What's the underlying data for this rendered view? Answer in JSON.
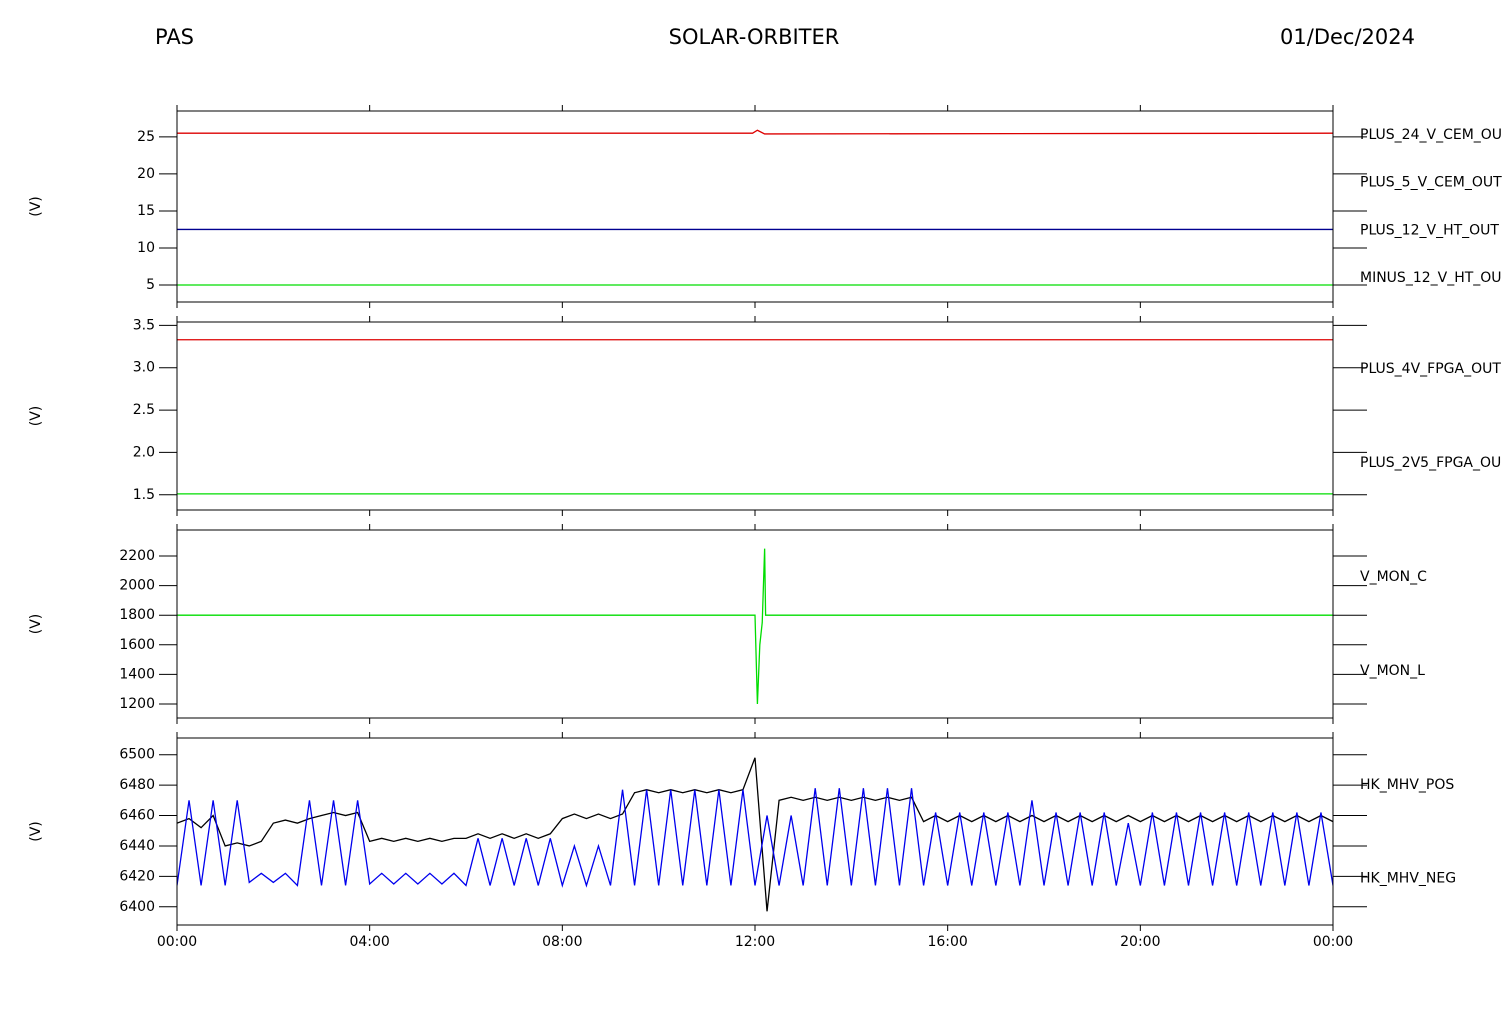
{
  "header": {
    "left": "PAS",
    "center": "SOLAR-ORBITER",
    "right": "01/Dec/2024"
  },
  "chart_data": [
    {
      "type": "line",
      "ylabel": "(V)",
      "xlim": [
        0,
        24
      ],
      "xticks": [
        0,
        4,
        8,
        12,
        16,
        20,
        24
      ],
      "ylim": [
        2.7,
        28.5
      ],
      "yticks": [
        5,
        10,
        15,
        20,
        25
      ],
      "series": [
        {
          "name": "PLUS_24_V_CEM_OU",
          "color": "#dd0000",
          "x": [
            0,
            11.95,
            12.05,
            12.2,
            24
          ],
          "values": [
            25.5,
            25.5,
            25.9,
            25.4,
            25.5
          ]
        },
        {
          "name": "PLUS_5_V_CEM_OUT",
          "color": "#00dd00",
          "x": [
            0,
            24
          ],
          "values": [
            5.0,
            5.0
          ]
        },
        {
          "name": "PLUS_12_V_HT_OUT",
          "color": "#000090",
          "x": [
            0,
            24
          ],
          "values": [
            12.5,
            12.5
          ]
        },
        {
          "name": "MINUS_12_V_HT_OU",
          "color": "#000000",
          "x": [
            0,
            24
          ],
          "values": [
            null,
            null
          ]
        }
      ]
    },
    {
      "type": "line",
      "ylabel": "(V)",
      "xlim": [
        0,
        24
      ],
      "xticks": [
        0,
        4,
        8,
        12,
        16,
        20,
        24
      ],
      "ylim": [
        1.32,
        3.54
      ],
      "yticks": [
        {
          "value": 1.5,
          "label": "1.5"
        },
        {
          "value": 2,
          "label": "2.0"
        },
        2.5,
        {
          "value": 3,
          "label": "3.0"
        },
        3.5
      ],
      "series": [
        {
          "name": "PLUS_4V_FPGA_OUT",
          "color": "#dd0000",
          "x": [
            0,
            24
          ],
          "values": [
            3.33,
            3.33
          ]
        },
        {
          "name": "PLUS_2V5_FPGA_OU",
          "color": "#00dd00",
          "x": [
            0,
            24
          ],
          "values": [
            1.51,
            1.51
          ]
        }
      ]
    },
    {
      "type": "line",
      "ylabel": "(V)",
      "xlim": [
        0,
        24
      ],
      "xticks": [
        0,
        4,
        8,
        12,
        16,
        20,
        24
      ],
      "ylim": [
        1105,
        2376
      ],
      "yticks": [
        1200,
        1400,
        1600,
        1800,
        2000,
        2200
      ],
      "series": [
        {
          "name": "V_MON_C",
          "color": "#dd0000",
          "x": [
            0,
            24
          ],
          "values": [
            null,
            null
          ]
        },
        {
          "name": "V_MON_L",
          "color": "#00dd00",
          "x": [
            0,
            12.0,
            12.05,
            12.1,
            12.15,
            12.2,
            12.22,
            24
          ],
          "values": [
            1800,
            1800,
            1200,
            1600,
            1750,
            2250,
            1800,
            1800
          ]
        }
      ]
    },
    {
      "type": "line",
      "ylabel": "(V)",
      "xlim": [
        0,
        24
      ],
      "xticks": [
        {
          "value": 0,
          "label": "00:00"
        },
        {
          "value": 4,
          "label": "04:00"
        },
        {
          "value": 8,
          "label": "08:00"
        },
        {
          "value": 12,
          "label": "12:00"
        },
        {
          "value": 16,
          "label": "16:00"
        },
        {
          "value": 20,
          "label": "20:00"
        },
        {
          "value": 24,
          "label": "00:00"
        }
      ],
      "ylim": [
        6388,
        6511
      ],
      "yticks": [
        6400,
        6420,
        6440,
        6460,
        6480,
        6500
      ],
      "series": [
        {
          "name": "HK_MHV_POS",
          "color": "#000000",
          "x": [
            0,
            0.25,
            0.5,
            0.75,
            1,
            1.25,
            1.5,
            1.75,
            2,
            2.25,
            2.5,
            2.75,
            3,
            3.25,
            3.5,
            3.75,
            4,
            4.25,
            4.5,
            4.75,
            5,
            5.25,
            5.5,
            5.75,
            6,
            6.25,
            6.5,
            6.75,
            7,
            7.25,
            7.5,
            7.75,
            8,
            8.25,
            8.5,
            8.75,
            9,
            9.25,
            9.5,
            9.75,
            10,
            10.25,
            10.5,
            10.75,
            11,
            11.25,
            11.5,
            11.75,
            12,
            12.25,
            12.5,
            12.75,
            13,
            13.25,
            13.5,
            13.75,
            14,
            14.25,
            14.5,
            14.75,
            15,
            15.25,
            15.5,
            15.75,
            16,
            16.25,
            16.5,
            16.75,
            17,
            17.25,
            17.5,
            17.75,
            18,
            18.25,
            18.5,
            18.75,
            19,
            19.25,
            19.5,
            19.75,
            20,
            20.25,
            20.5,
            20.75,
            21,
            21.25,
            21.5,
            21.75,
            22,
            22.25,
            22.5,
            22.75,
            23,
            23.25,
            23.5,
            23.75,
            24
          ],
          "values": [
            6455,
            6458,
            6452,
            6460,
            6440,
            6442,
            6440,
            6443,
            6455,
            6457,
            6455,
            6458,
            6460,
            6462,
            6460,
            6462,
            6443,
            6445,
            6443,
            6445,
            6443,
            6445,
            6443,
            6445,
            6445,
            6448,
            6445,
            6448,
            6445,
            6448,
            6445,
            6448,
            6458,
            6461,
            6458,
            6461,
            6458,
            6461,
            6475,
            6477,
            6475,
            6477,
            6475,
            6477,
            6475,
            6477,
            6475,
            6477,
            6498,
            6397,
            6470,
            6472,
            6470,
            6472,
            6470,
            6472,
            6470,
            6472,
            6470,
            6472,
            6470,
            6472,
            6456,
            6460,
            6456,
            6460,
            6456,
            6460,
            6456,
            6460,
            6456,
            6460,
            6456,
            6460,
            6456,
            6460,
            6456,
            6460,
            6456,
            6460,
            6456,
            6460,
            6456,
            6460,
            6456,
            6460,
            6456,
            6460,
            6456,
            6460,
            6456,
            6460,
            6456,
            6460,
            6456,
            6460,
            6456
          ]
        },
        {
          "name": "HK_MHV_NEG",
          "color": "#0000ee",
          "x": [
            0,
            0.25,
            0.5,
            0.75,
            1,
            1.25,
            1.5,
            1.75,
            2,
            2.25,
            2.5,
            2.75,
            3,
            3.25,
            3.5,
            3.75,
            4,
            4.25,
            4.5,
            4.75,
            5,
            5.25,
            5.5,
            5.75,
            6,
            6.25,
            6.5,
            6.75,
            7,
            7.25,
            7.5,
            7.75,
            8,
            8.25,
            8.5,
            8.75,
            9,
            9.25,
            9.5,
            9.75,
            10,
            10.25,
            10.5,
            10.75,
            11,
            11.25,
            11.5,
            11.75,
            12,
            12.25,
            12.5,
            12.75,
            13,
            13.25,
            13.5,
            13.75,
            14,
            14.25,
            14.5,
            14.75,
            15,
            15.25,
            15.5,
            15.75,
            16,
            16.25,
            16.5,
            16.75,
            17,
            17.25,
            17.5,
            17.75,
            18,
            18.25,
            18.5,
            18.75,
            19,
            19.25,
            19.5,
            19.75,
            20,
            20.25,
            20.5,
            20.75,
            21,
            21.25,
            21.5,
            21.75,
            22,
            22.25,
            22.5,
            22.75,
            23,
            23.25,
            23.5,
            23.75,
            24
          ],
          "values": [
            6414,
            6470,
            6414,
            6470,
            6414,
            6470,
            6416,
            6422,
            6416,
            6422,
            6414,
            6470,
            6414,
            6470,
            6414,
            6470,
            6415,
            6422,
            6415,
            6422,
            6415,
            6422,
            6415,
            6422,
            6414,
            6445,
            6414,
            6445,
            6414,
            6445,
            6414,
            6445,
            6414,
            6440,
            6414,
            6440,
            6414,
            6477,
            6414,
            6477,
            6414,
            6477,
            6414,
            6477,
            6414,
            6477,
            6414,
            6477,
            6414,
            6460,
            6414,
            6460,
            6414,
            6478,
            6414,
            6478,
            6414,
            6478,
            6414,
            6478,
            6414,
            6478,
            6414,
            6462,
            6414,
            6462,
            6414,
            6462,
            6414,
            6462,
            6414,
            6470,
            6414,
            6462,
            6414,
            6462,
            6414,
            6462,
            6414,
            6455,
            6414,
            6462,
            6414,
            6462,
            6414,
            6462,
            6414,
            6462,
            6414,
            6462,
            6414,
            6462,
            6414,
            6462,
            6414,
            6462,
            6414
          ]
        }
      ]
    }
  ]
}
